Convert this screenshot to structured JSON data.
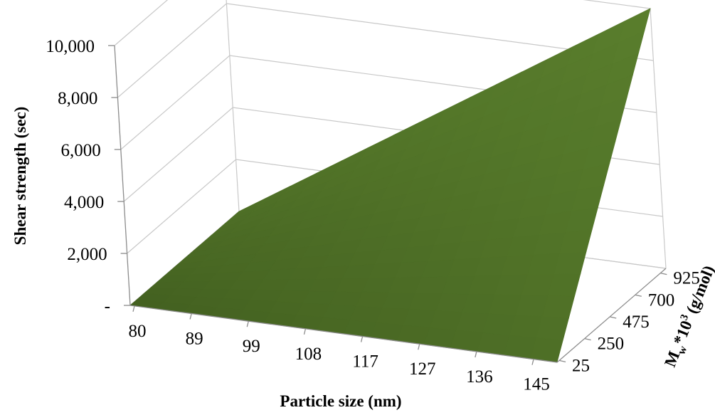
{
  "chart_data": {
    "type": "surface",
    "title": "",
    "x_axis": {
      "label": "Particle size (nm)",
      "ticks": [
        "80",
        "89",
        "99",
        "108",
        "117",
        "127",
        "136",
        "145"
      ]
    },
    "y_axis": {
      "label_main": "M",
      "label_sub": "w",
      "label_rest": "*10",
      "label_sup": "3",
      "label_tail": " (g/mol)",
      "ticks": [
        "25",
        "250",
        "475",
        "700",
        "925"
      ]
    },
    "z_axis": {
      "label": "Shear strength (sec)",
      "ticks": [
        "-",
        "2,000",
        "4,000",
        "6,000",
        "8,000",
        "10,000"
      ],
      "range": [
        0,
        10000
      ]
    },
    "surface_corners": [
      {
        "particle_size": 80,
        "mw": 25,
        "shear": 0
      },
      {
        "particle_size": 145,
        "mw": 25,
        "shear": 0
      },
      {
        "particle_size": 80,
        "mw": 925,
        "shear": 0
      },
      {
        "particle_size": 145,
        "mw": 925,
        "shear": 10000
      }
    ],
    "surface_color": "#6b8c3a",
    "grid": true
  }
}
